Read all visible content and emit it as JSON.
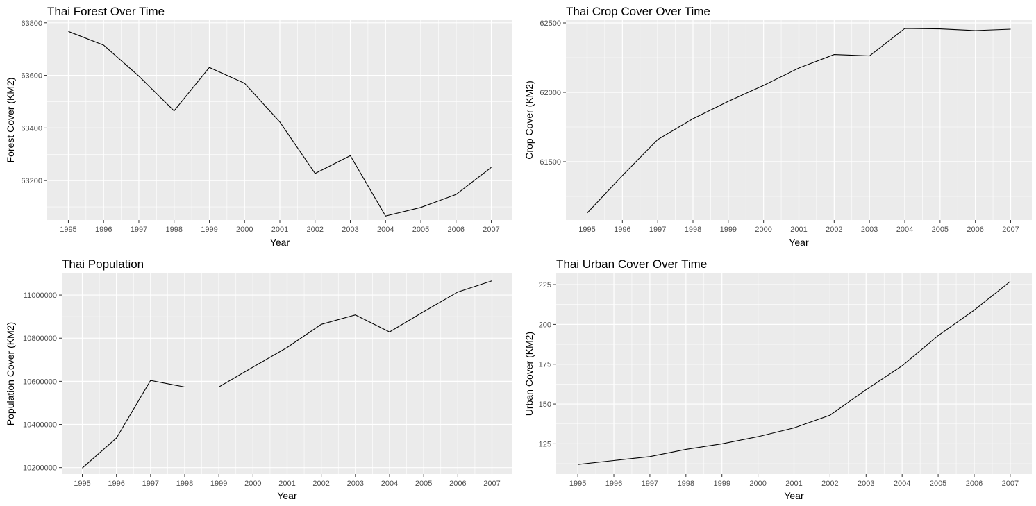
{
  "colors": {
    "panel_bg": "#ebebeb",
    "grid": "#ffffff",
    "line": "#000000",
    "tick_text": "#4d4d4d",
    "tick_mark": "#333333"
  },
  "chart_data": [
    {
      "type": "line",
      "title": "Thai Forest Over Time",
      "xlabel": "Year",
      "ylabel": "Forest Cover (KM2)",
      "x": [
        1995,
        1996,
        1997,
        1998,
        1999,
        2000,
        2001,
        2002,
        2003,
        2004,
        2005,
        2006,
        2007
      ],
      "xticks": [
        "1995",
        "1996",
        "1997",
        "1998",
        "1999",
        "2000",
        "2001",
        "2002",
        "2003",
        "2004",
        "2005",
        "2006",
        "2007"
      ],
      "yticks": [
        "63200",
        "63400",
        "63600",
        "63800"
      ],
      "ytick_values": [
        63200,
        63400,
        63600,
        63800
      ],
      "xlim": [
        1994.4,
        2007.6
      ],
      "ylim": [
        63050,
        63810
      ],
      "grid": true,
      "series": [
        {
          "values": [
            63767,
            63715,
            63597,
            63465,
            63630,
            63570,
            63423,
            63227,
            63295,
            63065,
            63098,
            63147,
            63250
          ]
        }
      ]
    },
    {
      "type": "line",
      "title": "Thai Crop Cover Over Time",
      "xlabel": "Year",
      "ylabel": "Crop Cover (KM2)",
      "x": [
        1995,
        1996,
        1997,
        1998,
        1999,
        2000,
        2001,
        2002,
        2003,
        2004,
        2005,
        2006,
        2007
      ],
      "xticks": [
        "1995",
        "1996",
        "1997",
        "1998",
        "1999",
        "2000",
        "2001",
        "2002",
        "2003",
        "2004",
        "2005",
        "2006",
        "2007"
      ],
      "yticks": [
        "61500",
        "62000",
        "62500"
      ],
      "ytick_values": [
        61500,
        62000,
        62500
      ],
      "xlim": [
        1994.4,
        2007.6
      ],
      "ylim": [
        61080,
        62520
      ],
      "grid": true,
      "series": [
        {
          "values": [
            61130,
            61400,
            61660,
            61810,
            61935,
            62050,
            62175,
            62272,
            62262,
            62460,
            62457,
            62445,
            62455
          ]
        }
      ]
    },
    {
      "type": "line",
      "title": "Thai Population",
      "xlabel": "Year",
      "ylabel": "Population Cover (KM2)",
      "x": [
        1995,
        1996,
        1997,
        1998,
        1999,
        2000,
        2001,
        2002,
        2003,
        2004,
        2005,
        2006,
        2007
      ],
      "xticks": [
        "1995",
        "1996",
        "1997",
        "1998",
        "1999",
        "2000",
        "2001",
        "2002",
        "2003",
        "2004",
        "2005",
        "2006",
        "2007"
      ],
      "yticks": [
        "10200000",
        "10400000",
        "10600000",
        "10800000",
        "11000000"
      ],
      "ytick_values": [
        10200000,
        10400000,
        10600000,
        10800000,
        11000000
      ],
      "xlim": [
        1994.4,
        2007.6
      ],
      "ylim": [
        10170000,
        11100000
      ],
      "grid": true,
      "series": [
        {
          "values": [
            10198000,
            10337000,
            10604000,
            10574000,
            10574000,
            10666000,
            10757000,
            10864000,
            10908000,
            10829000,
            10923000,
            11014000,
            11066000
          ]
        }
      ]
    },
    {
      "type": "line",
      "title": "Thai Urban Cover Over Time",
      "xlabel": "Year",
      "ylabel": "Urban Cover (KM2)",
      "x": [
        1995,
        1996,
        1997,
        1998,
        1999,
        2000,
        2001,
        2002,
        2003,
        2004,
        2005,
        2006,
        2007
      ],
      "xticks": [
        "1995",
        "1996",
        "1997",
        "1998",
        "1999",
        "2000",
        "2001",
        "2002",
        "2003",
        "2004",
        "2005",
        "2006",
        "2007"
      ],
      "yticks": [
        "125",
        "150",
        "175",
        "200",
        "225"
      ],
      "ytick_values": [
        125,
        150,
        175,
        200,
        225
      ],
      "xlim": [
        1994.4,
        2007.6
      ],
      "ylim": [
        106,
        232
      ],
      "grid": true,
      "series": [
        {
          "values": [
            112,
            114.5,
            117,
            121.5,
            125,
            129.5,
            135,
            143,
            159,
            174,
            193,
            209,
            227
          ]
        }
      ]
    }
  ]
}
